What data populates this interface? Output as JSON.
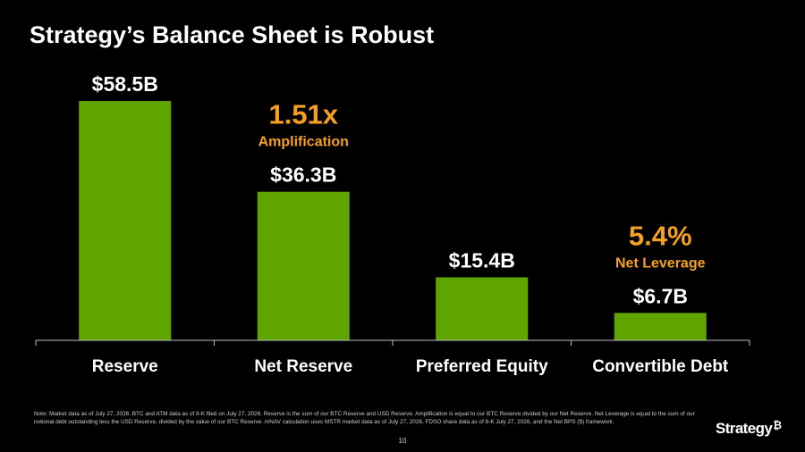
{
  "title": "Strategy’s Balance Sheet is Robust",
  "chart_data": {
    "type": "bar",
    "categories": [
      "Reserve",
      "Net Reserve",
      "Preferred Equity",
      "Convertible Debt"
    ],
    "values": [
      58.5,
      36.3,
      15.4,
      6.7
    ],
    "value_labels": [
      "$58.5B",
      "$36.3B",
      "$15.4B",
      "$6.7B"
    ],
    "unit": "$B",
    "bar_color": "#5ea500",
    "annotations": [
      {
        "value": "1.51x",
        "label": "Amplification",
        "category": "Net Reserve",
        "color": "#f5a023"
      },
      {
        "value": "5.4%",
        "label": "Net Leverage",
        "category": "Convertible Debt",
        "color": "#f5a023"
      }
    ]
  },
  "footnote": "Note: Market data as of July 27, 2026. BTC and ATM data as of 8-K filed on July 27, 2026. Reserve is the sum of our BTC Reserve and USD Reserve. Amplification is equal to our BTC Reserve divided by our Net Reserve. Net Leverage is equal to the sum of our notional debt outstanding less the USD Reserve, divided by the value of our BTC Reserve. mNAV calculation uses MSTR market data as of July 27, 2026, FDSO share data as of 8-K July 27, 2026, and the Net BPS ($) framework.",
  "page_number": "10",
  "logo": {
    "text": "Strategy",
    "mark": "₿"
  }
}
